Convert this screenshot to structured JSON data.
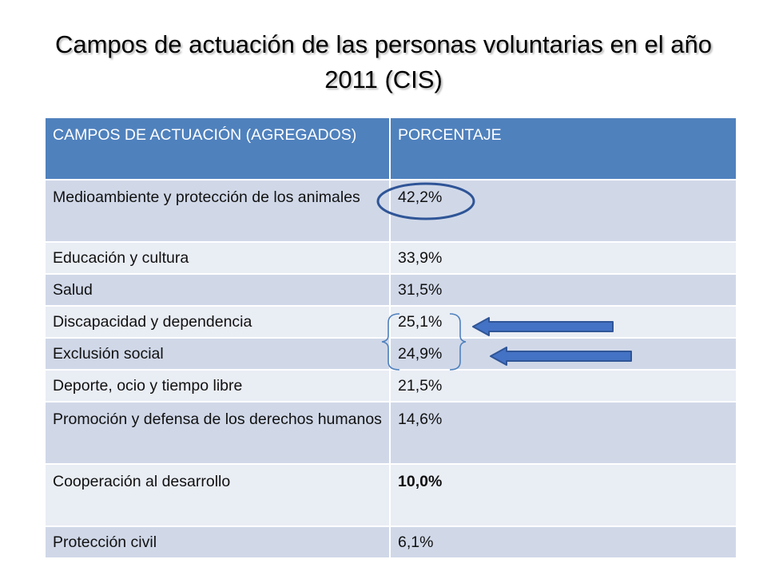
{
  "slide": {
    "title": "Campos de actuación de las personas voluntarias en el año 2011 (CIS)"
  },
  "table": {
    "headers": [
      "CAMPOS DE ACTUACIÓN (AGREGADOS)",
      "PORCENTAJE"
    ],
    "rows": [
      {
        "campo": "Medioambiente y protección de los animales",
        "porcentaje": "42,2%"
      },
      {
        "campo": "Educación y cultura",
        "porcentaje": "33,9%"
      },
      {
        "campo": "Salud",
        "porcentaje": "31,5%"
      },
      {
        "campo": "Discapacidad y dependencia",
        "porcentaje": "25,1%"
      },
      {
        "campo": "Exclusión social",
        "porcentaje": "24,9%"
      },
      {
        "campo": "Deporte, ocio y tiempo libre",
        "porcentaje": "21,5%"
      },
      {
        "campo": "Promoción y defensa de los derechos humanos",
        "porcentaje": "14,6%"
      },
      {
        "campo": "Cooperación al desarrollo",
        "porcentaje": "10,0%"
      },
      {
        "campo": "Protección civil",
        "porcentaje": "6,1%"
      }
    ]
  },
  "colors": {
    "header": "#4f81bd",
    "row_band_dark": "#d0d8e8",
    "row_band_light": "#e9edf4",
    "annotation_stroke": "#2f5597",
    "arrow_fill": "#4472c4"
  },
  "annotations": {
    "highlight_circle_row": 0,
    "bracket_rows": [
      3,
      4
    ],
    "arrow_rows": [
      3,
      4
    ]
  }
}
